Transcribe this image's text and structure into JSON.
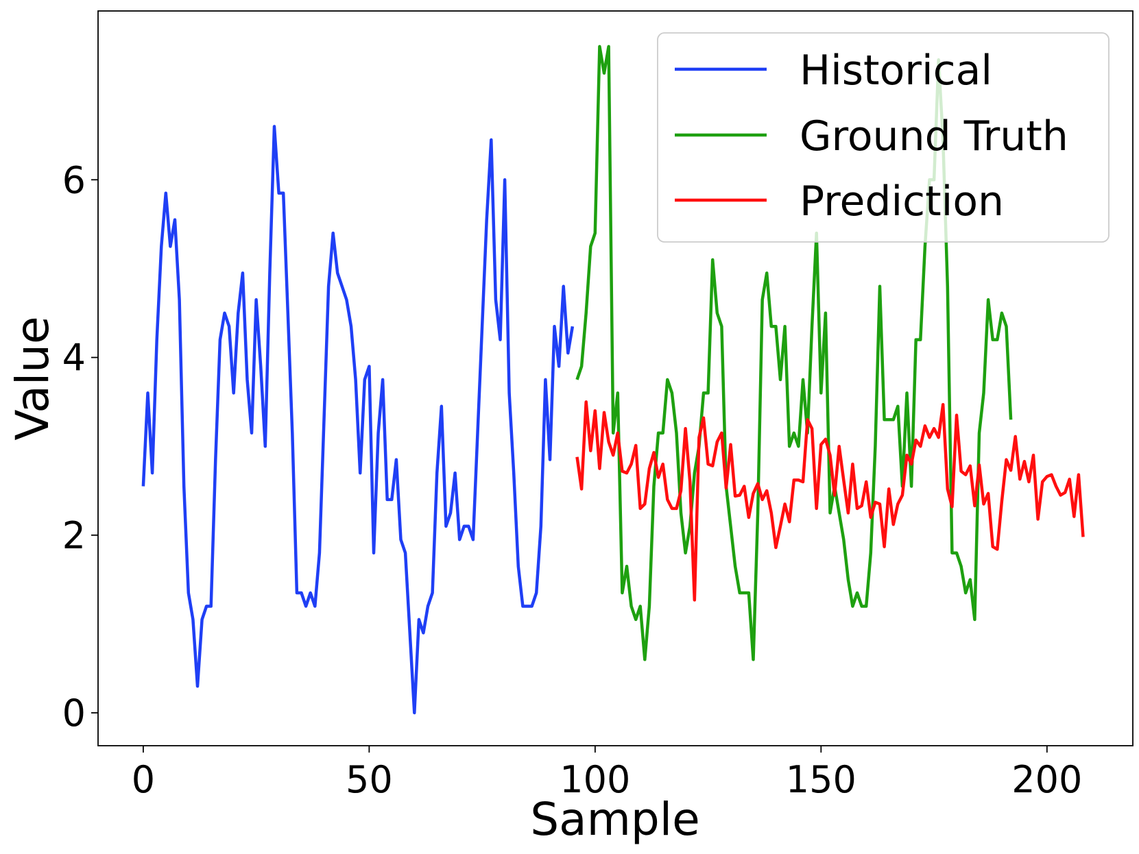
{
  "chart_data": {
    "type": "line",
    "xlabel": "Sample",
    "ylabel": "Value",
    "xlim": [
      -10,
      219
    ],
    "ylim": [
      -0.37,
      7.9
    ],
    "xticks": [
      0,
      50,
      100,
      150,
      200
    ],
    "yticks": [
      0,
      2,
      4,
      6
    ],
    "grid": false,
    "legend_position": "top-right",
    "series": [
      {
        "name": "Historical",
        "color": "#1f3ff5",
        "x_start": 0,
        "values": [
          2.55,
          3.6,
          2.7,
          4.2,
          5.25,
          5.85,
          5.25,
          5.55,
          4.65,
          2.55,
          1.35,
          1.05,
          0.3,
          1.05,
          1.2,
          1.2,
          2.85,
          4.2,
          4.5,
          4.35,
          3.6,
          4.5,
          4.95,
          3.75,
          3.15,
          4.65,
          3.9,
          3.0,
          4.95,
          6.6,
          5.85,
          5.85,
          4.5,
          3.15,
          1.35,
          1.35,
          1.2,
          1.35,
          1.2,
          1.8,
          3.3,
          4.8,
          5.4,
          4.95,
          4.8,
          4.65,
          4.35,
          3.75,
          2.7,
          3.75,
          3.9,
          1.8,
          3.15,
          3.75,
          2.4,
          2.4,
          2.85,
          1.95,
          1.8,
          0.9,
          0.0,
          1.05,
          0.9,
          1.2,
          1.35,
          2.7,
          3.45,
          2.1,
          2.25,
          2.7,
          1.95,
          2.1,
          2.1,
          1.95,
          3.15,
          4.35,
          5.55,
          6.45,
          4.65,
          4.2,
          6.0,
          3.6,
          2.7,
          1.65,
          1.2,
          1.2,
          1.2,
          1.35,
          2.1,
          3.75,
          2.85,
          4.35,
          3.9,
          4.8,
          4.05,
          4.35
        ]
      },
      {
        "name": "Ground Truth",
        "color": "#1ea010",
        "x_start": 96,
        "values": [
          3.75,
          3.9,
          4.5,
          5.25,
          5.4,
          7.5,
          7.2,
          7.5,
          3.15,
          3.6,
          1.35,
          1.65,
          1.2,
          1.05,
          1.2,
          0.6,
          1.2,
          2.55,
          3.15,
          3.15,
          3.75,
          3.6,
          3.15,
          2.25,
          1.8,
          2.1,
          2.7,
          3.0,
          3.6,
          3.6,
          5.1,
          4.5,
          4.35,
          2.55,
          2.1,
          1.65,
          1.35,
          1.35,
          1.35,
          0.6,
          2.25,
          4.65,
          4.95,
          4.35,
          4.35,
          3.75,
          4.35,
          3.0,
          3.15,
          3.0,
          3.75,
          3.15,
          4.35,
          5.4,
          3.6,
          4.5,
          2.25,
          2.55,
          2.25,
          1.95,
          1.5,
          1.2,
          1.35,
          1.2,
          1.2,
          1.8,
          3.0,
          4.8,
          3.3,
          3.3,
          3.3,
          3.45,
          2.55,
          3.6,
          2.55,
          4.2,
          4.2,
          5.25,
          6.0,
          6.0,
          7.35,
          6.45,
          4.8,
          1.8,
          1.8,
          1.65,
          1.35,
          1.5,
          1.05,
          3.15,
          3.6,
          4.65,
          4.2,
          4.2,
          4.5,
          4.35,
          3.3
        ]
      },
      {
        "name": "Prediction",
        "color": "#ff0f0f",
        "x_start": 96,
        "values": [
          2.88,
          2.52,
          3.5,
          2.95,
          3.4,
          2.75,
          3.38,
          3.05,
          2.9,
          3.15,
          2.72,
          2.7,
          2.8,
          3.01,
          2.3,
          2.35,
          2.75,
          2.93,
          2.65,
          2.8,
          2.4,
          2.3,
          2.3,
          2.5,
          3.2,
          2.6,
          1.27,
          3.1,
          3.32,
          2.8,
          2.78,
          3.05,
          3.15,
          2.53,
          3.02,
          2.44,
          2.45,
          2.55,
          2.2,
          2.47,
          2.58,
          2.4,
          2.5,
          2.25,
          1.86,
          2.1,
          2.35,
          2.15,
          2.62,
          2.62,
          2.6,
          3.3,
          3.2,
          2.3,
          3.02,
          3.08,
          2.9,
          2.45,
          3.0,
          2.62,
          2.25,
          2.8,
          2.3,
          2.33,
          2.6,
          2.2,
          2.37,
          2.35,
          1.87,
          2.52,
          2.12,
          2.35,
          2.45,
          2.9,
          2.8,
          3.07,
          3.0,
          3.23,
          3.1,
          3.2,
          3.1,
          3.47,
          2.52,
          2.32,
          3.35,
          2.72,
          2.68,
          2.78,
          2.33,
          2.79,
          2.35,
          2.47,
          1.87,
          1.84,
          2.38,
          2.85,
          2.73,
          3.11,
          2.63,
          2.83,
          2.6,
          2.9,
          2.18,
          2.6,
          2.66,
          2.68,
          2.55,
          2.45,
          2.48,
          2.63,
          2.21,
          2.68,
          1.98
        ]
      }
    ]
  }
}
